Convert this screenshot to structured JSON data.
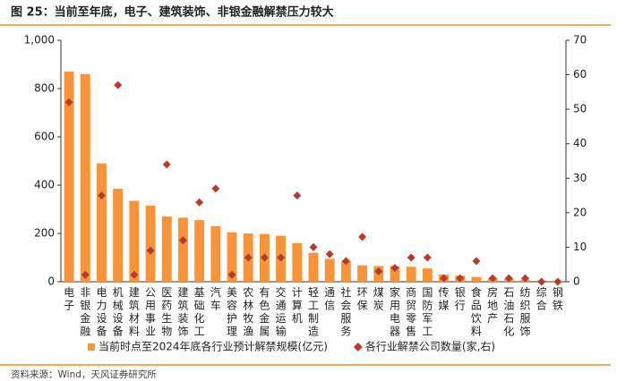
{
  "chart_data": {
    "type": "bar-scatter",
    "title": "图 25：当前至年底，电子、建筑装饰、非银金融解禁压力较大",
    "categories": [
      "电子",
      "非银金融",
      "电力设备",
      "机械设备",
      "建筑材料",
      "公用事业",
      "医药生物",
      "建筑装饰",
      "基础化工",
      "汽车",
      "美容护理",
      "农林牧渔",
      "有色金属",
      "交通运输",
      "计算机",
      "轻工制造",
      "通信",
      "社会服务",
      "环保",
      "煤炭",
      "家用电器",
      "商贸零售",
      "国防军工",
      "传媒",
      "银行",
      "食品饮料",
      "房地产",
      "石油石化",
      "纺织服饰",
      "综合",
      "钢铁"
    ],
    "series": [
      {
        "name": "当前时点至2024年底各行业预计解禁规模(亿元)",
        "color": "#f7943a",
        "mark": "bar",
        "values": [
          870,
          860,
          490,
          385,
          335,
          315,
          270,
          265,
          255,
          230,
          205,
          200,
          198,
          190,
          160,
          120,
          95,
          85,
          68,
          65,
          65,
          62,
          55,
          30,
          25,
          20,
          15,
          12,
          8,
          5,
          3
        ]
      },
      {
        "name": "各行业解禁公司数量(家,右)",
        "color": "#b83a2e",
        "mark": "diamond",
        "axis": "y2",
        "values": [
          52,
          2,
          25,
          57,
          2,
          9,
          34,
          12,
          23,
          27,
          2,
          7,
          7,
          7,
          25,
          10,
          8,
          6,
          13,
          3,
          4,
          7,
          7,
          1,
          1,
          6,
          1,
          1,
          1,
          0,
          0
        ]
      }
    ],
    "ylim": [
      0,
      1000
    ],
    "yticks": [
      0,
      200,
      400,
      600,
      800,
      {
        "value": 1000,
        "label": "1,000"
      }
    ],
    "y2lim": [
      0,
      70
    ],
    "y2ticks": [
      0,
      10,
      20,
      30,
      40,
      50,
      60,
      70
    ],
    "grid": false
  },
  "source": "资料来源：Wind，天风证券研究所"
}
